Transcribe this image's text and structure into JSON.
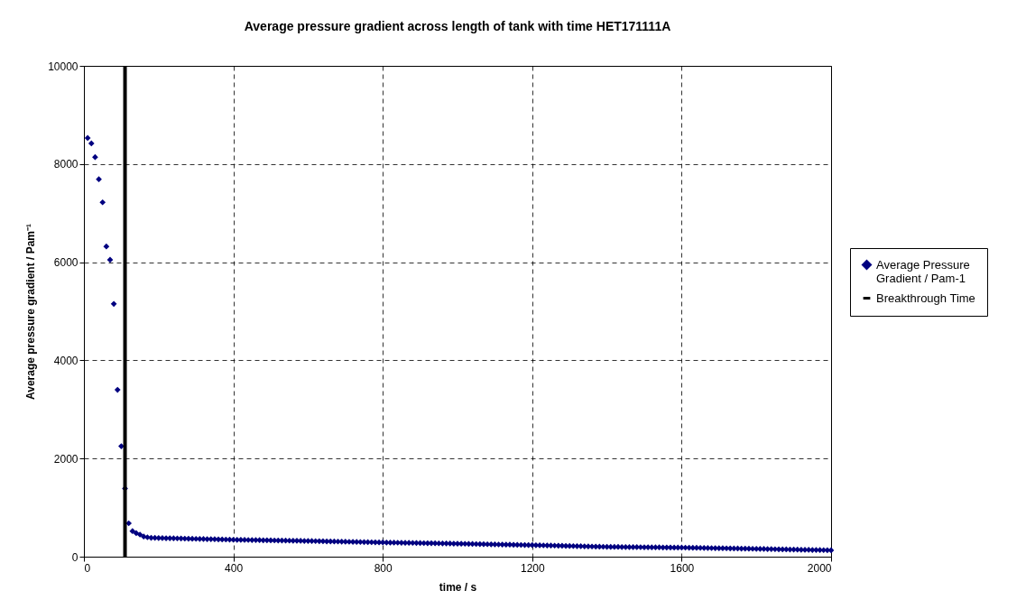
{
  "chart_data": {
    "type": "scatter",
    "title": "Average pressure gradient across length of tank with time HET171111A",
    "xlabel": "time / s",
    "ylabel": "Average pressure gradient / Pam⁻¹",
    "xlim": [
      0,
      2000
    ],
    "xticks": [
      0,
      400,
      800,
      1200,
      1600,
      2000
    ],
    "ylim": [
      0,
      10000
    ],
    "yticks": [
      0,
      2000,
      4000,
      6000,
      8000,
      10000
    ],
    "grid": true,
    "legend": "right",
    "marker": "diamond",
    "ref_lines": [
      {
        "axis": "x",
        "value": 110,
        "label": "Breakthrough Time",
        "color": "#000000"
      }
    ],
    "x": [
      10,
      20,
      30,
      40,
      50,
      60,
      70,
      80,
      90,
      100,
      110,
      120,
      130,
      140,
      150,
      160,
      170,
      180,
      190,
      200,
      210,
      220,
      230,
      240,
      250,
      260,
      270,
      280,
      290,
      300,
      310,
      320,
      330,
      340,
      350,
      360,
      370,
      380,
      390,
      400,
      410,
      420,
      430,
      440,
      450,
      460,
      470,
      480,
      490,
      500,
      510,
      520,
      530,
      540,
      550,
      560,
      570,
      580,
      590,
      600,
      610,
      620,
      630,
      640,
      650,
      660,
      670,
      680,
      690,
      700,
      710,
      720,
      730,
      740,
      750,
      760,
      770,
      780,
      790,
      800,
      810,
      820,
      830,
      840,
      850,
      860,
      870,
      880,
      890,
      900,
      910,
      920,
      930,
      940,
      950,
      960,
      970,
      980,
      990,
      1000,
      1010,
      1020,
      1030,
      1040,
      1050,
      1060,
      1070,
      1080,
      1090,
      1100,
      1110,
      1120,
      1130,
      1140,
      1150,
      1160,
      1170,
      1180,
      1190,
      1200,
      1210,
      1220,
      1230,
      1240,
      1250,
      1260,
      1270,
      1280,
      1290,
      1300,
      1310,
      1320,
      1330,
      1340,
      1350,
      1360,
      1370,
      1380,
      1390,
      1400,
      1410,
      1420,
      1430,
      1440,
      1450,
      1460,
      1470,
      1480,
      1490,
      1500,
      1510,
      1520,
      1530,
      1540,
      1550,
      1560,
      1570,
      1580,
      1590,
      1600,
      1610,
      1620,
      1630,
      1640,
      1650,
      1660,
      1670,
      1680,
      1690,
      1700,
      1710,
      1720,
      1730,
      1740,
      1750,
      1760,
      1770,
      1780,
      1790,
      1800,
      1810,
      1820,
      1830,
      1840,
      1850,
      1860,
      1870,
      1880,
      1890,
      1900,
      1910,
      1920,
      1930,
      1940,
      1950,
      1960,
      1970,
      1980,
      1990,
      2000
    ],
    "series": [
      {
        "name": "Average Pressure Gradient / Pam-1",
        "color": "#000080",
        "values": [
          8530,
          8420,
          8140,
          7690,
          7220,
          6320,
          6050,
          5150,
          3400,
          2250,
          1390,
          680,
          520,
          480,
          450,
          410,
          395,
          385,
          382,
          380,
          378,
          376,
          375,
          373,
          372,
          370,
          368,
          367,
          365,
          363,
          362,
          360,
          358,
          357,
          355,
          353,
          351,
          349,
          347,
          345,
          344,
          343,
          341,
          340,
          339,
          338,
          336,
          335,
          334,
          333,
          331,
          330,
          329,
          328,
          326,
          325,
          324,
          323,
          321,
          320,
          318,
          317,
          315,
          314,
          312,
          311,
          309,
          308,
          306,
          305,
          303,
          302,
          300,
          299,
          297,
          296,
          294,
          293,
          291,
          290,
          289,
          287,
          286,
          285,
          284,
          282,
          281,
          280,
          279,
          277,
          276,
          275,
          274,
          272,
          271,
          270,
          269,
          267,
          266,
          265,
          263,
          262,
          260,
          259,
          257,
          256,
          254,
          253,
          251,
          250,
          248,
          247,
          245,
          244,
          242,
          241,
          239,
          238,
          236,
          235,
          233,
          232,
          230,
          228,
          226,
          225,
          223,
          221,
          219,
          218,
          216,
          214,
          212,
          211,
          209,
          207,
          205,
          204,
          202,
          200,
          199,
          198,
          198,
          197,
          196,
          195,
          194,
          194,
          193,
          192,
          191,
          190,
          190,
          189,
          188,
          187,
          187,
          186,
          185,
          185,
          184,
          182,
          181,
          180,
          179,
          177,
          176,
          175,
          174,
          172,
          171,
          170,
          169,
          167,
          166,
          165,
          164,
          162,
          161,
          160,
          158,
          157,
          155,
          154,
          152,
          151,
          149,
          148,
          146,
          145,
          143,
          142,
          140,
          139,
          137,
          136,
          134,
          133,
          131,
          130
        ]
      }
    ]
  }
}
